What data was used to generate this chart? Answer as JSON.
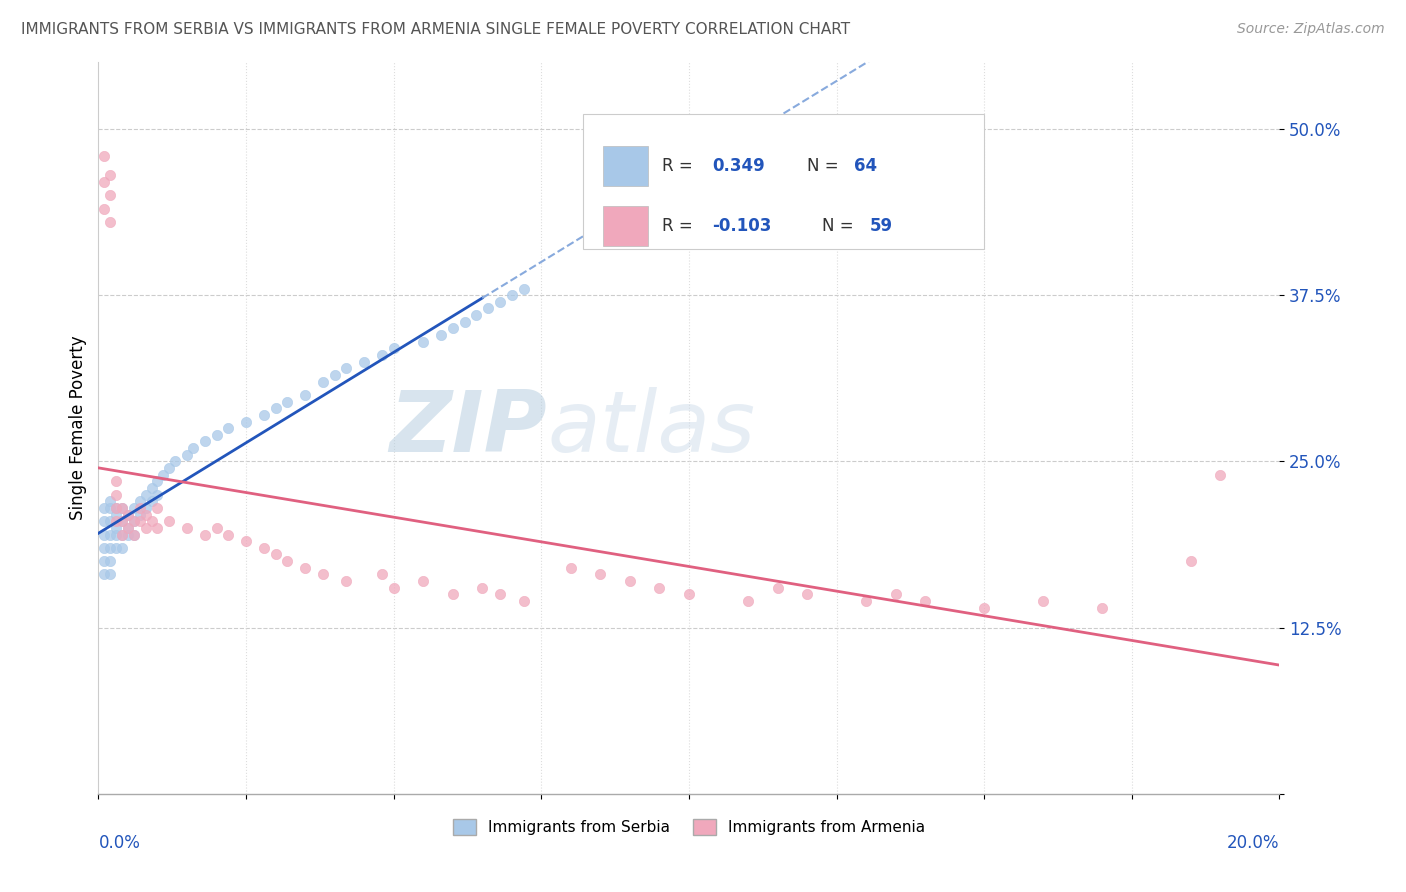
{
  "title": "IMMIGRANTS FROM SERBIA VS IMMIGRANTS FROM ARMENIA SINGLE FEMALE POVERTY CORRELATION CHART",
  "source": "Source: ZipAtlas.com",
  "ylabel": "Single Female Poverty",
  "xlim": [
    0.0,
    0.2
  ],
  "ylim": [
    0.0,
    0.55
  ],
  "serbia_R": 0.349,
  "serbia_N": 64,
  "armenia_R": -0.103,
  "armenia_N": 59,
  "serbia_color": "#a8c8e8",
  "armenia_color": "#f0a8bc",
  "serbia_trend_color": "#2255bb",
  "serbia_trend_dashed_color": "#88aadd",
  "armenia_trend_color": "#e06080",
  "watermark_zip_color": "#c8dff0",
  "watermark_atlas_color": "#c8d8e8",
  "serbia_scatter_x": [
    0.001,
    0.001,
    0.001,
    0.001,
    0.001,
    0.001,
    0.002,
    0.002,
    0.002,
    0.002,
    0.002,
    0.002,
    0.002,
    0.003,
    0.003,
    0.003,
    0.003,
    0.003,
    0.004,
    0.004,
    0.004,
    0.004,
    0.005,
    0.005,
    0.005,
    0.006,
    0.006,
    0.006,
    0.007,
    0.007,
    0.008,
    0.008,
    0.009,
    0.009,
    0.01,
    0.01,
    0.011,
    0.012,
    0.013,
    0.015,
    0.016,
    0.018,
    0.02,
    0.022,
    0.025,
    0.028,
    0.03,
    0.032,
    0.035,
    0.038,
    0.04,
    0.042,
    0.045,
    0.048,
    0.05,
    0.055,
    0.058,
    0.06,
    0.062,
    0.064,
    0.066,
    0.068,
    0.07,
    0.072
  ],
  "serbia_scatter_y": [
    0.195,
    0.205,
    0.215,
    0.185,
    0.175,
    0.165,
    0.205,
    0.195,
    0.185,
    0.215,
    0.175,
    0.22,
    0.165,
    0.21,
    0.2,
    0.195,
    0.215,
    0.185,
    0.205,
    0.195,
    0.215,
    0.185,
    0.21,
    0.2,
    0.195,
    0.215,
    0.205,
    0.195,
    0.22,
    0.21,
    0.225,
    0.215,
    0.23,
    0.22,
    0.235,
    0.225,
    0.24,
    0.245,
    0.25,
    0.255,
    0.26,
    0.265,
    0.27,
    0.275,
    0.28,
    0.285,
    0.29,
    0.295,
    0.3,
    0.31,
    0.315,
    0.32,
    0.325,
    0.33,
    0.335,
    0.34,
    0.345,
    0.35,
    0.355,
    0.36,
    0.365,
    0.37,
    0.375,
    0.38
  ],
  "armenia_scatter_x": [
    0.001,
    0.001,
    0.001,
    0.002,
    0.002,
    0.002,
    0.003,
    0.003,
    0.003,
    0.003,
    0.004,
    0.004,
    0.004,
    0.005,
    0.005,
    0.006,
    0.006,
    0.007,
    0.007,
    0.008,
    0.008,
    0.009,
    0.01,
    0.01,
    0.012,
    0.015,
    0.018,
    0.02,
    0.022,
    0.025,
    0.028,
    0.03,
    0.032,
    0.035,
    0.038,
    0.042,
    0.048,
    0.05,
    0.055,
    0.06,
    0.065,
    0.068,
    0.072,
    0.08,
    0.085,
    0.09,
    0.095,
    0.1,
    0.11,
    0.115,
    0.12,
    0.13,
    0.135,
    0.14,
    0.15,
    0.16,
    0.17,
    0.185,
    0.19
  ],
  "armenia_scatter_y": [
    0.44,
    0.46,
    0.48,
    0.43,
    0.45,
    0.465,
    0.215,
    0.225,
    0.205,
    0.235,
    0.215,
    0.205,
    0.195,
    0.21,
    0.2,
    0.205,
    0.195,
    0.215,
    0.205,
    0.21,
    0.2,
    0.205,
    0.215,
    0.2,
    0.205,
    0.2,
    0.195,
    0.2,
    0.195,
    0.19,
    0.185,
    0.18,
    0.175,
    0.17,
    0.165,
    0.16,
    0.165,
    0.155,
    0.16,
    0.15,
    0.155,
    0.15,
    0.145,
    0.17,
    0.165,
    0.16,
    0.155,
    0.15,
    0.145,
    0.155,
    0.15,
    0.145,
    0.15,
    0.145,
    0.14,
    0.145,
    0.14,
    0.175,
    0.24
  ]
}
